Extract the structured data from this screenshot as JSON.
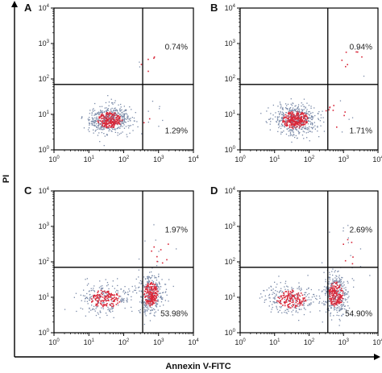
{
  "figure": {
    "x_axis_title": "Annexin V-FITC",
    "y_axis_title": "PI"
  },
  "colors": {
    "dense_dot": "#d8283a",
    "sparse_dot": "#7a8aa8",
    "axis": "#000000"
  },
  "chart_data": [
    {
      "type": "scatter",
      "panel": "A",
      "xlabel": "Annexin V-FITC",
      "ylabel": "PI",
      "x_scale": "log",
      "y_scale": "log",
      "xlim": [
        1,
        10000
      ],
      "ylim": [
        1,
        10000
      ],
      "x_ticks": [
        "10^0",
        "10^1",
        "10^2",
        "10^3",
        "10^4"
      ],
      "y_ticks": [
        "10^0",
        "10^1",
        "10^2",
        "10^3",
        "10^4"
      ],
      "gate": {
        "x": 350,
        "y": 70
      },
      "quadrant_labels": [
        {
          "quadrant": "upper-right",
          "text": "0.74%"
        },
        {
          "quadrant": "lower-right",
          "text": "1.29%"
        }
      ],
      "populations": [
        {
          "center": [
            40,
            7
          ],
          "spread_decades": [
            0.28,
            0.18
          ],
          "count": 600,
          "share": 0.96
        },
        {
          "center": [
            500,
            8
          ],
          "spread_decades": [
            0.2,
            0.25
          ],
          "count": 12,
          "share": 0.013
        },
        {
          "center": [
            500,
            300
          ],
          "spread_decades": [
            0.2,
            0.3
          ],
          "count": 7,
          "share": 0.007
        }
      ]
    },
    {
      "type": "scatter",
      "panel": "B",
      "xlabel": "Annexin V-FITC",
      "ylabel": "PI",
      "x_scale": "log",
      "y_scale": "log",
      "xlim": [
        1,
        10000
      ],
      "ylim": [
        1,
        10000
      ],
      "x_ticks": [
        "10^0",
        "10^1",
        "10^2",
        "10^3",
        "10^4"
      ],
      "y_ticks": [
        "10^0",
        "10^1",
        "10^2",
        "10^3",
        "10^4"
      ],
      "gate": {
        "x": 350,
        "y": 70
      },
      "quadrant_labels": [
        {
          "quadrant": "upper-right",
          "text": "0.94%"
        },
        {
          "quadrant": "lower-right",
          "text": "1.71%"
        }
      ],
      "populations": [
        {
          "center": [
            40,
            7
          ],
          "spread_decades": [
            0.3,
            0.2
          ],
          "count": 620,
          "share": 0.95
        },
        {
          "center": [
            600,
            9
          ],
          "spread_decades": [
            0.25,
            0.3
          ],
          "count": 16,
          "share": 0.017
        },
        {
          "center": [
            1500,
            500
          ],
          "spread_decades": [
            0.3,
            0.35
          ],
          "count": 9,
          "share": 0.009
        }
      ]
    },
    {
      "type": "scatter",
      "panel": "C",
      "xlabel": "Annexin V-FITC",
      "ylabel": "PI",
      "x_scale": "log",
      "y_scale": "log",
      "xlim": [
        1,
        10000
      ],
      "ylim": [
        1,
        10000
      ],
      "x_ticks": [
        "10^0",
        "10^1",
        "10^2",
        "10^3",
        "10^4"
      ],
      "y_ticks": [
        "10^0",
        "10^1",
        "10^2",
        "10^3",
        "10^4"
      ],
      "gate": {
        "x": 350,
        "y": 70
      },
      "quadrant_labels": [
        {
          "quadrant": "upper-right",
          "text": "1.97%"
        },
        {
          "quadrant": "lower-right",
          "text": "53.98%"
        }
      ],
      "populations": [
        {
          "center": [
            30,
            9
          ],
          "spread_decades": [
            0.35,
            0.2
          ],
          "count": 320,
          "share": 0.42
        },
        {
          "center": [
            600,
            12
          ],
          "spread_decades": [
            0.17,
            0.28
          ],
          "count": 420,
          "share": 0.54
        },
        {
          "center": [
            1200,
            150
          ],
          "spread_decades": [
            0.25,
            0.35
          ],
          "count": 15,
          "share": 0.02
        }
      ]
    },
    {
      "type": "scatter",
      "panel": "D",
      "xlabel": "Annexin V-FITC",
      "ylabel": "PI",
      "x_scale": "log",
      "y_scale": "log",
      "xlim": [
        1,
        10000
      ],
      "ylim": [
        1,
        10000
      ],
      "x_ticks": [
        "10^0",
        "10^1",
        "10^2",
        "10^3",
        "10^4"
      ],
      "y_ticks": [
        "10^0",
        "10^1",
        "10^2",
        "10^3",
        "10^4"
      ],
      "gate": {
        "x": 350,
        "y": 70
      },
      "quadrant_labels": [
        {
          "quadrant": "upper-right",
          "text": "2.69%"
        },
        {
          "quadrant": "lower-right",
          "text": "54.90%"
        }
      ],
      "populations": [
        {
          "center": [
            30,
            9
          ],
          "spread_decades": [
            0.35,
            0.2
          ],
          "count": 310,
          "share": 0.41
        },
        {
          "center": [
            600,
            12
          ],
          "spread_decades": [
            0.17,
            0.28
          ],
          "count": 430,
          "share": 0.55
        },
        {
          "center": [
            1500,
            200
          ],
          "spread_decades": [
            0.25,
            0.35
          ],
          "count": 20,
          "share": 0.027
        }
      ]
    }
  ]
}
